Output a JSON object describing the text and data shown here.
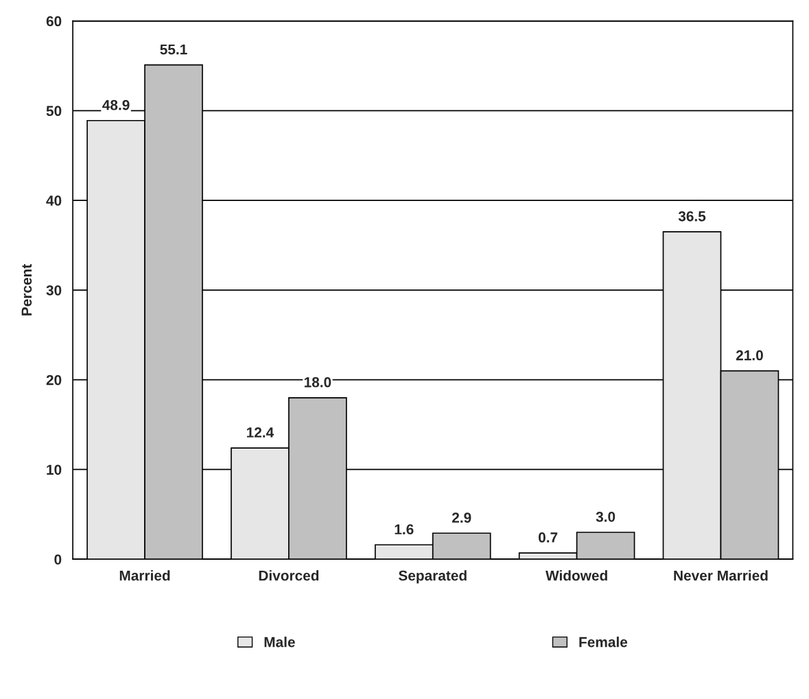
{
  "chart_data": {
    "type": "bar",
    "ylabel": "Percent",
    "categories": [
      "Married",
      "Divorced",
      "Separated",
      "Widowed",
      "Never Married"
    ],
    "series": [
      {
        "name": "Male",
        "color": "#e6e6e6",
        "values": [
          48.9,
          12.4,
          1.6,
          0.7,
          36.5
        ],
        "value_labels": [
          "48.9",
          "12.4",
          "1.6",
          "0.7",
          "36.5"
        ]
      },
      {
        "name": "Female",
        "color": "#c0c0c0",
        "values": [
          55.1,
          18.0,
          2.9,
          3.0,
          21.0
        ],
        "value_labels": [
          "55.1",
          "18.0",
          "2.9",
          "3.0",
          "21.0"
        ]
      }
    ],
    "ylim": [
      0,
      60
    ],
    "yticks": [
      0,
      10,
      20,
      30,
      40,
      50,
      60
    ],
    "grid": "y",
    "legend": "bottom"
  }
}
